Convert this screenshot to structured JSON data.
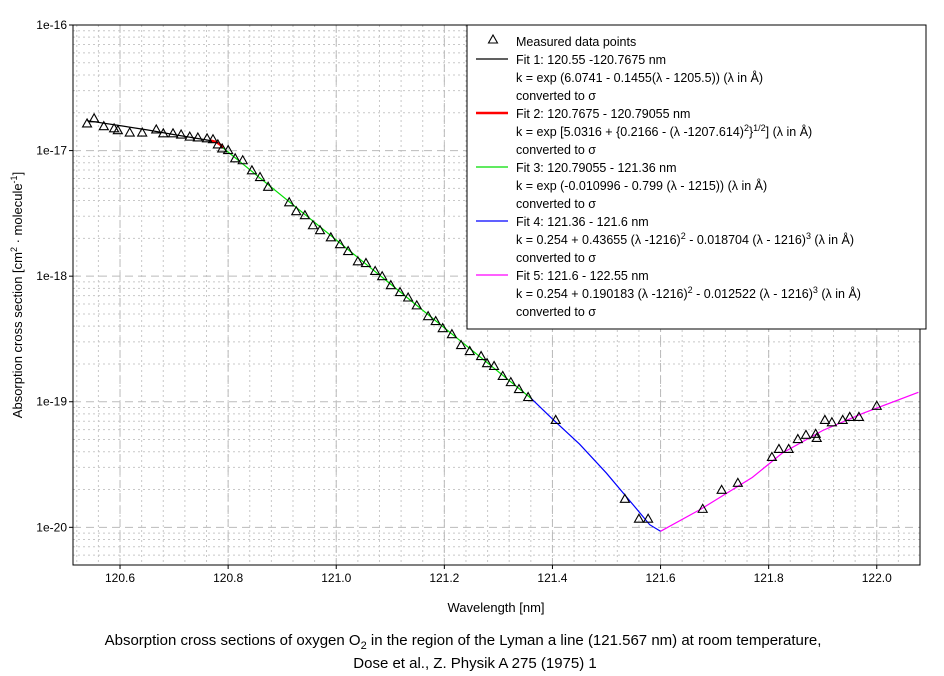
{
  "chart_data": {
    "type": "line",
    "xlabel": "Wavelength [nm]",
    "ylabel": {
      "main": "Absorption cross section [cm",
      "sup1": "2",
      "mid": " · molecule",
      "sup2": "-1",
      "end": "]"
    },
    "yscale": "log",
    "xlim": [
      120.513,
      122.08
    ],
    "ylim_log10": [
      -20.3,
      -16
    ],
    "x_ticks": [
      "120.6",
      "120.8",
      "121.0",
      "121.2",
      "121.4",
      "121.6",
      "121.8",
      "122.0"
    ],
    "x_tick_values": [
      120.6,
      120.8,
      121.0,
      121.2,
      121.4,
      121.6,
      121.8,
      122.0
    ],
    "y_ticks": [
      "1e-16",
      "1e-17",
      "1e-18",
      "1e-19",
      "1e-20"
    ],
    "y_tick_values": [
      1e-16,
      1e-17,
      1e-18,
      1e-19,
      1e-20
    ],
    "grid": true,
    "caption": {
      "line1_a": "Absorption cross sections of oxygen O",
      "line1_sub": "2",
      "line1_b": " in the region of the Lyman a line (121.567 nm) at room temperature,",
      "line2": "Dose et al., Z. Physik A 275 (1975) 1"
    },
    "measured": {
      "name": "Measured data points",
      "x": [
        120.539,
        120.552,
        120.57,
        120.589,
        120.596,
        120.618,
        120.641,
        120.667,
        120.68,
        120.698,
        120.713,
        120.729,
        120.744,
        120.761,
        120.772,
        120.781,
        120.789,
        120.8,
        120.813,
        120.827,
        120.844,
        120.859,
        120.874,
        120.913,
        120.926,
        120.942,
        120.957,
        120.97,
        120.99,
        121.007,
        121.022,
        121.04,
        121.055,
        121.072,
        121.085,
        121.101,
        121.118,
        121.133,
        121.149,
        121.17,
        121.184,
        121.197,
        121.214,
        121.231,
        121.247,
        121.268,
        121.279,
        121.292,
        121.308,
        121.323,
        121.338,
        121.355,
        121.406,
        121.534,
        121.56,
        121.577,
        121.678,
        121.713,
        121.743,
        121.806,
        121.819,
        121.837,
        121.854,
        121.869,
        121.887,
        121.889,
        121.904,
        121.917,
        121.937,
        121.95,
        121.967,
        122.0
      ],
      "y": [
        1.63e-17,
        1.79e-17,
        1.55e-17,
        1.49e-17,
        1.44e-17,
        1.38e-17,
        1.38e-17,
        1.46e-17,
        1.36e-17,
        1.36e-17,
        1.33e-17,
        1.28e-17,
        1.26e-17,
        1.24e-17,
        1.22e-17,
        1.11e-17,
        1.03e-17,
        1e-17,
        8.6e-18,
        8.3e-18,
        6.9e-18,
        6.1e-18,
        5.1e-18,
        3.84e-18,
        3.26e-18,
        3.03e-18,
        2.52e-18,
        2.3e-18,
        2.02e-18,
        1.78e-18,
        1.57e-18,
        1.3e-18,
        1.26e-18,
        1.09e-18,
        9.9e-19,
        8.4e-19,
        7.4e-19,
        6.7e-19,
        5.8e-19,
        4.76e-19,
        4.35e-19,
        3.82e-19,
        3.42e-19,
        2.8e-19,
        2.51e-19,
        2.29e-19,
        2.01e-19,
        1.91e-19,
        1.59e-19,
        1.42e-19,
        1.25e-19,
        1.08e-19,
        7.1e-20,
        1.67e-20,
        1.16e-20,
        1.16e-20,
        1.39e-20,
        1.97e-20,
        2.24e-20,
        3.6e-20,
        4.17e-20,
        4.17e-20,
        5e-20,
        5.4e-20,
        5.5e-20,
        5.1e-20,
        7.1e-20,
        6.8e-20,
        7.1e-20,
        7.5e-20,
        7.5e-20,
        9.2e-20
      ]
    },
    "series": [
      {
        "name": "Fit 1",
        "color": "#000000",
        "legend": [
          [
            {
              "t": "Fit 1: 120.55 -120.7675 nm"
            }
          ],
          [
            {
              "t": "k = exp (6.0741 - 0.1455(λ - 1205.5)) (λ in Å)"
            }
          ],
          [
            {
              "t": "converted to σ"
            }
          ]
        ],
        "x": [
          120.539,
          120.6,
          120.65,
          120.7,
          120.7675
        ],
        "y": [
          1.73e-17,
          1.58e-17,
          1.46e-17,
          1.34e-17,
          1.2e-17
        ]
      },
      {
        "name": "Fit 2",
        "color": "#ff0000",
        "legend": [
          [
            {
              "t": "Fit 2: 120.7675 - 120.79055 nm"
            }
          ],
          [
            {
              "t": "k = exp [5.0316 + {0.2166 - (λ -1207.614)"
            },
            {
              "t": "2",
              "sup": true
            },
            {
              "t": "}"
            },
            {
              "t": "1/2",
              "sup": true
            },
            {
              "t": "] (λ in Å)"
            }
          ],
          [
            {
              "t": "converted to σ"
            }
          ]
        ],
        "x": [
          120.7675,
          120.778,
          120.786,
          120.79055
        ],
        "y": [
          1.2e-17,
          1.17e-17,
          1.11e-17,
          1.05e-17
        ]
      },
      {
        "name": "Fit 3",
        "color": "#00dd00",
        "legend": [
          [
            {
              "t": "Fit 3: 120.79055 - 121.36 nm"
            }
          ],
          [
            {
              "t": "k = exp (-0.010996 - 0.799 (λ - 1215)) (λ in Å)"
            }
          ],
          [
            {
              "t": "converted to σ"
            }
          ]
        ],
        "x": [
          120.79055,
          121.36
        ],
        "y": [
          1.05e-17,
          1.07e-19
        ]
      },
      {
        "name": "Fit 4",
        "color": "#0000ff",
        "legend": [
          [
            {
              "t": "Fit 4: 121.36 - 121.6 nm"
            }
          ],
          [
            {
              "t": "k = 0.254 + 0.43655 (λ -1216)"
            },
            {
              "t": "2",
              "sup": true
            },
            {
              "t": " - 0.018704 (λ - 1216)"
            },
            {
              "t": "3",
              "sup": true
            },
            {
              "t": " (λ in Å)"
            }
          ],
          [
            {
              "t": "converted to σ"
            }
          ]
        ],
        "x": [
          121.36,
          121.4,
          121.45,
          121.5,
          121.55,
          121.58,
          121.6
        ],
        "y": [
          1.07e-19,
          7.3e-20,
          4.6e-20,
          2.7e-20,
          1.5e-20,
          1.05e-20,
          9.3e-21
        ]
      },
      {
        "name": "Fit 5",
        "color": "#ff00ff",
        "legend": [
          [
            {
              "t": "Fit 5: 121.6 - 122.55 nm"
            }
          ],
          [
            {
              "t": "k = 0.254 + 0.190183 (λ -1216)"
            },
            {
              "t": "2",
              "sup": true
            },
            {
              "t": " - 0.012522 (λ - 1216)"
            },
            {
              "t": "3",
              "sup": true
            },
            {
              "t": " (λ in Å)"
            }
          ],
          [
            {
              "t": "converted to σ"
            }
          ]
        ],
        "x": [
          121.6,
          121.675,
          121.77,
          121.825,
          121.9,
          121.975,
          122.077
        ],
        "y": [
          9.3e-21,
          1.4e-20,
          2.5e-20,
          3.9e-20,
          5.9e-20,
          8.1e-20,
          1.19e-19
        ]
      }
    ]
  }
}
